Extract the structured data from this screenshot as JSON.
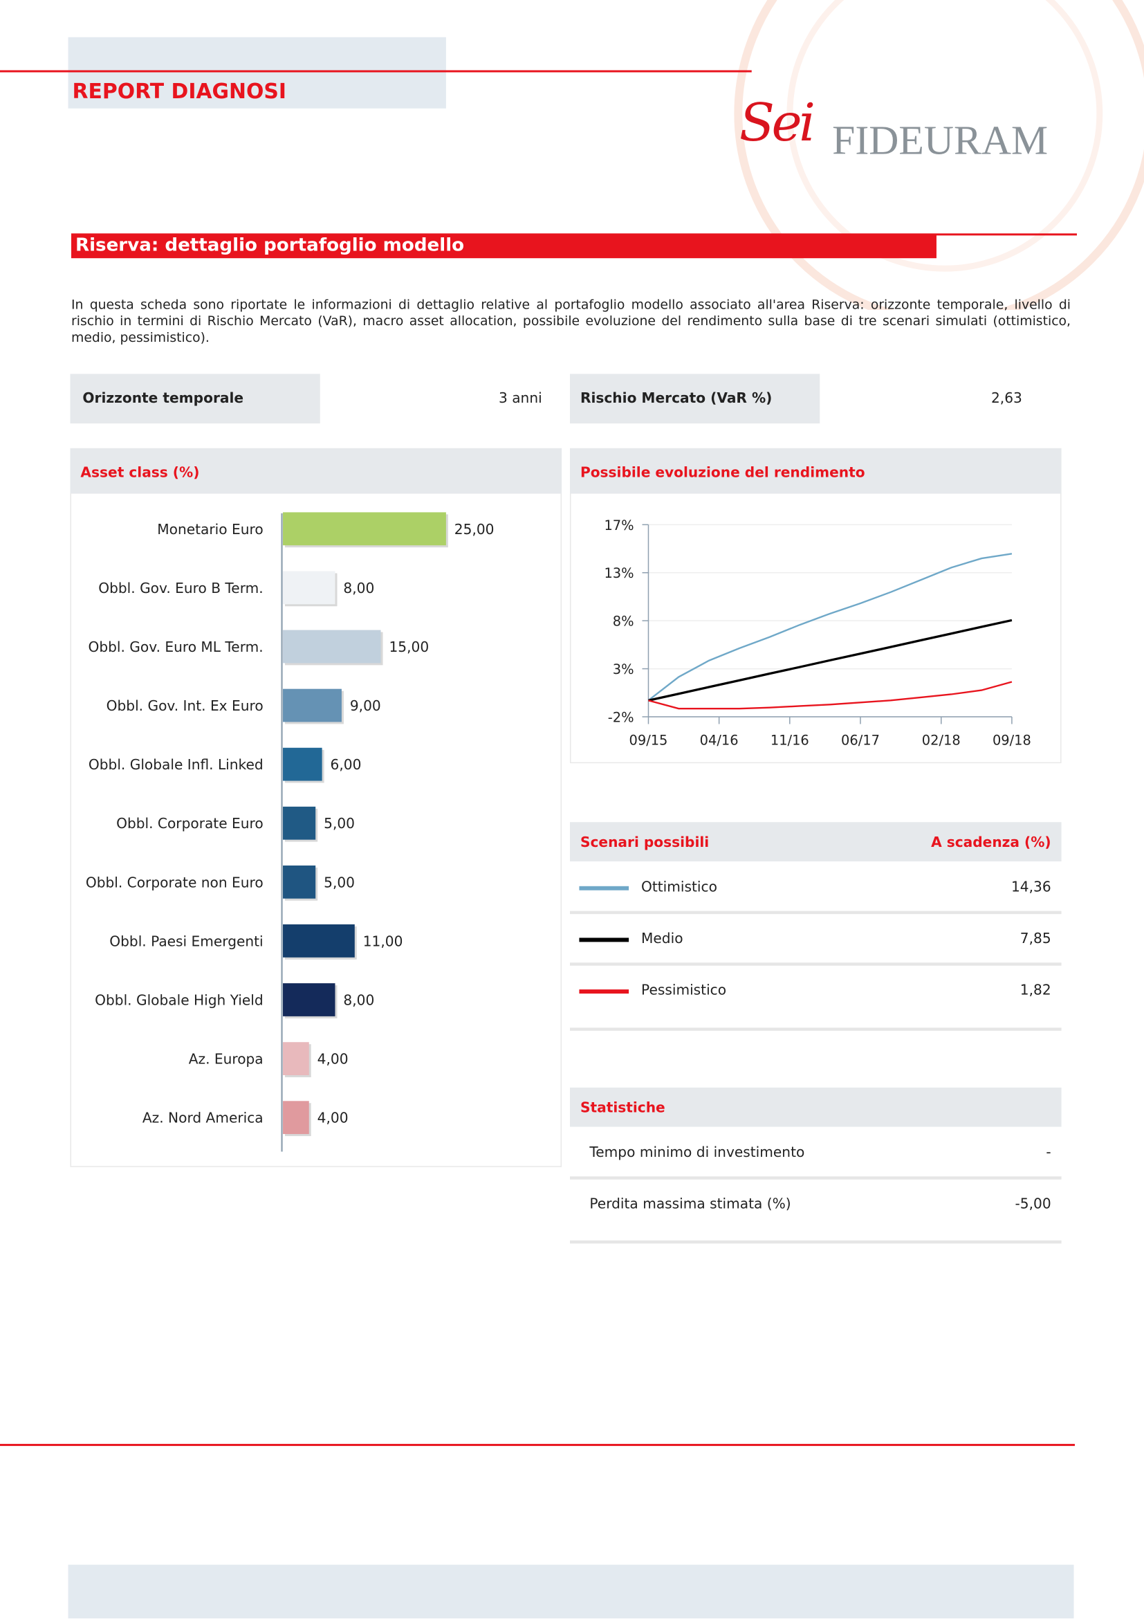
{
  "header": {
    "title": "REPORT DIAGNOSI"
  },
  "logo": {
    "mark": "Sei",
    "name": "FIDEURAM"
  },
  "section": {
    "title": "Riserva: dettaglio portafoglio modello"
  },
  "intro": "In questa scheda sono riportate le informazioni di dettaglio relative al portafoglio modello associato all'area Riserva: orizzonte temporale, livello di rischio in termini di Rischio Mercato (VaR), macro asset allocation, possibile evoluzione del rendimento sulla base di tre scenari simulati (ottimistico, medio, pessimistico).",
  "summary": [
    {
      "label": "Orizzonte temporale",
      "value": "3 anni"
    },
    {
      "label": "Rischio Mercato (VaR %)",
      "value": "2,63"
    }
  ],
  "chart_data": [
    {
      "type": "bar",
      "orientation": "horizontal",
      "title": "Asset class (%)",
      "categories": [
        "Monetario Euro",
        "Obbl. Gov. Euro B Term.",
        "Obbl. Gov. Euro ML Term.",
        "Obbl. Gov. Int. Ex Euro",
        "Obbl. Globale Infl. Linked",
        "Obbl. Corporate Euro",
        "Obbl. Corporate non Euro",
        "Obbl. Paesi Emergenti",
        "Obbl. Globale High Yield",
        "Az. Europa",
        "Az. Nord America"
      ],
      "values": [
        25,
        8,
        15,
        9,
        6,
        5,
        5,
        11,
        8,
        4,
        4
      ],
      "value_labels": [
        "25,00",
        "8,00",
        "15,00",
        "9,00",
        "6,00",
        "5,00",
        "5,00",
        "11,00",
        "8,00",
        "4,00",
        "4,00"
      ],
      "colors": [
        "#acd066",
        "#eff2f5",
        "#c1d0dd",
        "#6592b4",
        "#226896",
        "#205a85",
        "#1f5581",
        "#143e6c",
        "#142a5a",
        "#e8b9bc",
        "#e09a9e"
      ],
      "xlim": [
        0,
        25
      ]
    },
    {
      "type": "line",
      "title": "Possibile evoluzione del rendimento",
      "x": [
        0,
        3,
        6,
        9,
        12,
        15,
        18,
        21,
        24,
        27,
        30,
        33,
        36
      ],
      "xlim": [
        0,
        36
      ],
      "xticks": [
        {
          "value": 0,
          "label": "09/15"
        },
        {
          "value": 7,
          "label": "04/16"
        },
        {
          "value": 14,
          "label": "11/16"
        },
        {
          "value": 21,
          "label": "06/17"
        },
        {
          "value": 29,
          "label": "02/18"
        },
        {
          "value": 36,
          "label": "09/18"
        }
      ],
      "ylim": [
        -1.6,
        17.2
      ],
      "yticks": [
        {
          "value": -1.6,
          "label": "-2%"
        },
        {
          "value": 3.1,
          "label": "3%"
        },
        {
          "value": 7.8,
          "label": "8%"
        },
        {
          "value": 12.5,
          "label": "13%"
        },
        {
          "value": 17.2,
          "label": "17%"
        }
      ],
      "grid": true,
      "series": [
        {
          "name": "Ottimistico",
          "color": "#6fa8c8",
          "values": [
            0,
            2.3,
            3.9,
            5.1,
            6.2,
            7.4,
            8.5,
            9.5,
            10.6,
            11.8,
            13.0,
            13.9,
            14.36
          ]
        },
        {
          "name": "Medio",
          "color": "#000000",
          "values": [
            0,
            0.65,
            1.31,
            1.96,
            2.62,
            3.27,
            3.93,
            4.58,
            5.23,
            5.89,
            6.54,
            7.2,
            7.85
          ]
        },
        {
          "name": "Pessimistico",
          "color": "#e8141e",
          "values": [
            0,
            -0.8,
            -0.8,
            -0.8,
            -0.7,
            -0.55,
            -0.4,
            -0.2,
            0,
            0.3,
            0.6,
            1.0,
            1.82
          ]
        }
      ]
    }
  ],
  "scenarios": {
    "header": [
      "Scenari possibili",
      "A scadenza (%)"
    ],
    "values": [
      "14,36",
      "7,85",
      "1,82"
    ]
  },
  "stats": {
    "title": "Statistiche",
    "rows": [
      [
        "Tempo minimo di investimento",
        "-"
      ],
      [
        "Perdita massima stimata (%)",
        "-5,00"
      ]
    ]
  }
}
